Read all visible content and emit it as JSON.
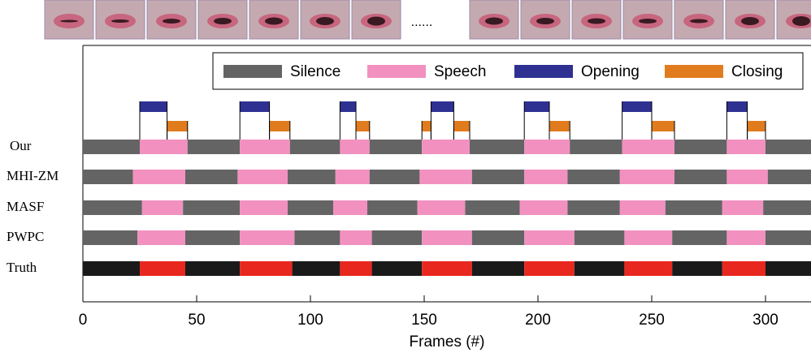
{
  "chart_data": {
    "type": "segments",
    "xlabel": "Frames (#)",
    "ellipsis": "......",
    "xlim": [
      0,
      320
    ],
    "xticks": [
      0,
      50,
      100,
      150,
      200,
      250,
      300
    ],
    "series": [
      {
        "name": "Silence",
        "color": "#646464"
      },
      {
        "name": "Speech",
        "color": "#f291c0"
      },
      {
        "name": "Opening",
        "color": "#2e3192",
        "intervals": [
          [
            25,
            37
          ],
          [
            69,
            82
          ],
          [
            113,
            120
          ],
          [
            153,
            163
          ],
          [
            194,
            205
          ],
          [
            237,
            250
          ],
          [
            283,
            292
          ]
        ]
      },
      {
        "name": "Closing",
        "color": "#e07c1e",
        "intervals": [
          [
            37,
            46
          ],
          [
            82,
            91
          ],
          [
            120,
            126
          ],
          [
            149,
            153
          ],
          [
            163,
            170
          ],
          [
            205,
            214
          ],
          [
            250,
            260
          ],
          [
            292,
            300
          ]
        ]
      }
    ],
    "rows": [
      {
        "name": "Our",
        "colors": [
          "#646464",
          "#f291c0"
        ],
        "bounds": [
          0,
          25,
          46,
          69,
          91,
          113,
          126,
          149,
          170,
          194,
          214,
          237,
          260,
          283,
          300,
          320
        ]
      },
      {
        "name": "MHI-ZM",
        "colors": [
          "#646464",
          "#f291c0"
        ],
        "bounds": [
          0,
          22,
          45,
          68,
          90,
          111,
          126,
          148,
          171,
          194,
          213,
          236,
          260,
          283,
          301,
          320
        ]
      },
      {
        "name": "MASF",
        "colors": [
          "#646464",
          "#f291c0"
        ],
        "bounds": [
          0,
          26,
          44,
          69,
          90,
          110,
          125,
          147,
          168,
          192,
          213,
          236,
          256,
          281,
          299,
          320
        ]
      },
      {
        "name": "PWPC",
        "colors": [
          "#646464",
          "#f291c0"
        ],
        "bounds": [
          0,
          24,
          45,
          69,
          93,
          113,
          127,
          149,
          171,
          194,
          216,
          238,
          259,
          283,
          300,
          320
        ]
      },
      {
        "name": "Truth",
        "colors": [
          "#1a1a1a",
          "#e8281e"
        ],
        "bounds": [
          0,
          25,
          45,
          69,
          92,
          113,
          127,
          149,
          171,
          194,
          216,
          238,
          259,
          281,
          300,
          320
        ]
      }
    ]
  }
}
